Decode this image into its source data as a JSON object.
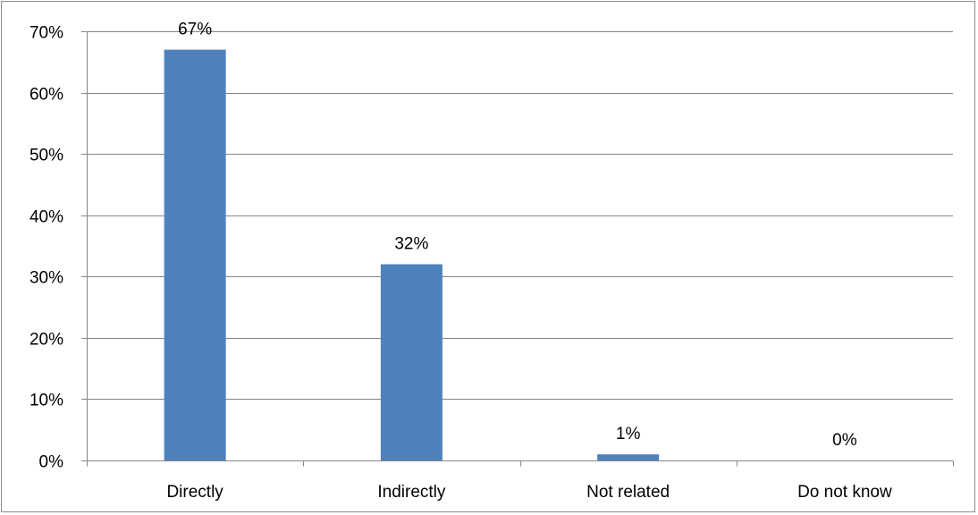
{
  "chart_data": {
    "type": "bar",
    "categories": [
      "Directly",
      "Indirectly",
      "Not related",
      "Do not know"
    ],
    "values": [
      67,
      32,
      1,
      0
    ],
    "data_labels": [
      "67%",
      "32%",
      "1%",
      "0%"
    ],
    "title": "",
    "xlabel": "",
    "ylabel": "",
    "ylim": [
      0,
      70
    ],
    "yticks": [
      0,
      10,
      20,
      30,
      40,
      50,
      60,
      70
    ],
    "ytick_labels": [
      "0%",
      "10%",
      "20%",
      "30%",
      "40%",
      "50%",
      "60%",
      "70%"
    ],
    "grid": true,
    "legend": "none",
    "colors": {
      "bar": "#4F81BD",
      "grid": "#868686",
      "axis": "#868686",
      "border": "#8c8c8c"
    }
  }
}
